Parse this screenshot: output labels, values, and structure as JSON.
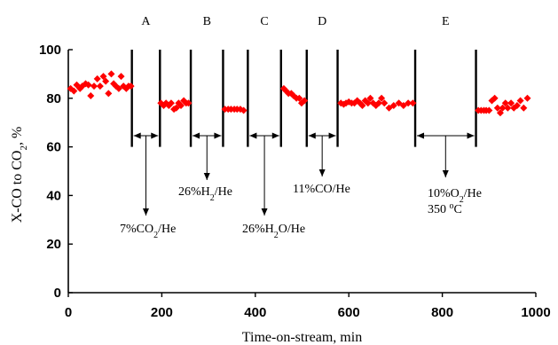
{
  "chart_data": {
    "type": "scatter",
    "title": "",
    "xlabel": "Time-on-stream, min",
    "ylabel_parts": {
      "main": "X-CO to CO",
      "sub": "2",
      "tail": ", %"
    },
    "xlim": [
      0,
      1000
    ],
    "ylim": [
      0,
      100
    ],
    "x_ticks": [
      "0",
      "200",
      "400",
      "600",
      "800",
      "1000"
    ],
    "y_ticks": [
      "0",
      "20",
      "40",
      "60",
      "80",
      "100"
    ],
    "x_tick_values": [
      0,
      200,
      400,
      600,
      800,
      1000
    ],
    "y_tick_values": [
      0,
      20,
      40,
      60,
      80,
      100
    ],
    "grid": false,
    "marker_color": "#ff0000",
    "series": [
      {
        "points": [
          [
            5,
            84
          ],
          [
            12,
            83
          ],
          [
            18,
            85.5
          ],
          [
            25,
            84
          ],
          [
            30,
            85
          ],
          [
            37,
            86
          ],
          [
            43,
            85.5
          ],
          [
            48,
            81
          ],
          [
            55,
            85
          ],
          [
            62,
            88
          ],
          [
            68,
            85
          ],
          [
            75,
            89
          ],
          [
            80,
            87
          ],
          [
            86,
            82
          ],
          [
            92,
            90
          ],
          [
            97,
            86
          ],
          [
            102,
            85
          ],
          [
            108,
            84
          ],
          [
            113,
            89
          ],
          [
            118,
            85
          ],
          [
            124,
            84
          ],
          [
            129,
            85
          ],
          [
            134,
            85
          ],
          [
            198,
            78
          ],
          [
            204,
            77
          ],
          [
            209,
            78
          ],
          [
            215,
            77
          ],
          [
            220,
            78
          ],
          [
            226,
            75.5
          ],
          [
            231,
            76
          ],
          [
            236,
            78
          ],
          [
            241,
            77
          ],
          [
            247,
            79
          ],
          [
            252,
            78
          ],
          [
            257,
            78
          ],
          [
            335,
            75.5
          ],
          [
            342,
            75.5
          ],
          [
            348,
            75.5
          ],
          [
            355,
            75.5
          ],
          [
            361,
            75.5
          ],
          [
            368,
            75.5
          ],
          [
            375,
            75
          ],
          [
            461,
            84
          ],
          [
            466,
            83
          ],
          [
            471,
            82
          ],
          [
            477,
            82
          ],
          [
            482,
            81
          ],
          [
            488,
            80
          ],
          [
            494,
            80
          ],
          [
            499,
            78
          ],
          [
            505,
            79
          ],
          [
            583,
            78
          ],
          [
            589,
            77.5
          ],
          [
            594,
            78
          ],
          [
            600,
            78.5
          ],
          [
            606,
            78
          ],
          [
            612,
            78
          ],
          [
            618,
            79
          ],
          [
            624,
            78
          ],
          [
            629,
            77
          ],
          [
            635,
            79
          ],
          [
            641,
            78
          ],
          [
            646,
            80
          ],
          [
            652,
            78
          ],
          [
            658,
            77
          ],
          [
            664,
            78
          ],
          [
            670,
            80
          ],
          [
            676,
            78
          ],
          [
            686,
            76
          ],
          [
            696,
            77
          ],
          [
            707,
            78
          ],
          [
            717,
            77
          ],
          [
            727,
            78
          ],
          [
            737,
            78
          ],
          [
            877,
            75
          ],
          [
            883,
            75
          ],
          [
            889,
            75
          ],
          [
            894,
            75
          ],
          [
            900,
            75
          ],
          [
            906,
            79
          ],
          [
            912,
            80
          ],
          [
            918,
            76
          ],
          [
            924,
            74
          ],
          [
            929,
            76
          ],
          [
            935,
            78
          ],
          [
            940,
            76
          ],
          [
            947,
            78
          ],
          [
            953,
            76
          ],
          [
            960,
            77
          ],
          [
            967,
            79
          ],
          [
            974,
            76
          ],
          [
            982,
            80
          ]
        ]
      }
    ],
    "regions": [
      {
        "label": "A",
        "x_start": 136,
        "x_end": 196,
        "annotation": {
          "main": "7%CO",
          "sub": "2",
          "tail": "/He"
        }
      },
      {
        "label": "B",
        "x_start": 262,
        "x_end": 331,
        "annotation": {
          "main": "26%H",
          "sub": "2",
          "tail": "/He"
        }
      },
      {
        "label": "C",
        "x_start": 384,
        "x_end": 455,
        "annotation": {
          "main": "26%H",
          "sub": "2",
          "tail": "O/He"
        }
      },
      {
        "label": "D",
        "x_start": 510,
        "x_end": 576,
        "annotation": {
          "main": "11%CO/He",
          "sub": "",
          "tail": ""
        }
      },
      {
        "label": "E",
        "x_start": 742,
        "x_end": 872,
        "annotation": {
          "main": "10%O",
          "sub": "2",
          "tail": "/He"
        },
        "annotation_line2": {
          "main": "350 ",
          "sup": "o",
          "tail": "C"
        }
      }
    ]
  }
}
